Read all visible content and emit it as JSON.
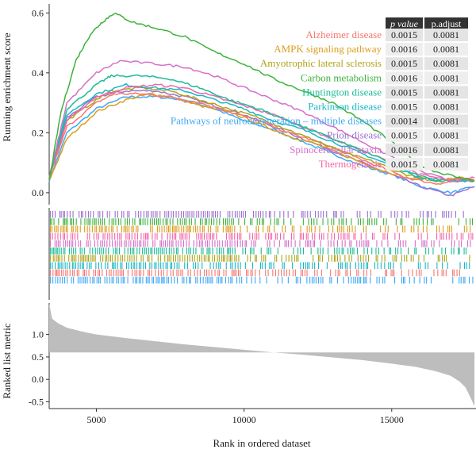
{
  "chart_data": {
    "type": "line",
    "xlabel": "Rank in ordered dataset",
    "x_ticks": [
      5000,
      10000,
      15000
    ],
    "x_range": [
      3400,
      17800
    ],
    "top_panel": {
      "ylabel": "Running enrichment score",
      "y_ticks": [
        0.0,
        0.2,
        0.4,
        0.6
      ],
      "ylim": [
        -0.04,
        0.63
      ],
      "series": [
        {
          "name": "Alzheimer disease",
          "color": "#F8766D",
          "x": [
            3400,
            4000,
            5000,
            5600,
            6500,
            7500,
            8500,
            9500,
            10500,
            11500,
            12500,
            13500,
            14500,
            15500,
            16500,
            17300,
            17800
          ],
          "y": [
            0.05,
            0.22,
            0.3,
            0.33,
            0.33,
            0.32,
            0.3,
            0.27,
            0.24,
            0.2,
            0.17,
            0.13,
            0.09,
            0.05,
            0.03,
            0.04,
            0.04
          ]
        },
        {
          "name": "AMPK signaling pathway",
          "color": "#DB9D1C",
          "x": [
            3400,
            4000,
            5000,
            6000,
            6800,
            7500,
            8500,
            9500,
            10500,
            11500,
            12500,
            13500,
            14500,
            15500,
            16500,
            17300,
            17800
          ],
          "y": [
            0.04,
            0.18,
            0.27,
            0.31,
            0.33,
            0.32,
            0.29,
            0.27,
            0.23,
            0.19,
            0.16,
            0.12,
            0.08,
            0.05,
            0.04,
            0.05,
            0.04
          ]
        },
        {
          "name": "Amyotrophic lateral sclerosis",
          "color": "#AFA31B",
          "x": [
            3400,
            4000,
            5000,
            5500,
            6500,
            7500,
            8500,
            9500,
            10500,
            11500,
            12500,
            13500,
            14500,
            15500,
            16500,
            17300,
            17800
          ],
          "y": [
            0.05,
            0.24,
            0.31,
            0.34,
            0.35,
            0.34,
            0.31,
            0.28,
            0.25,
            0.21,
            0.17,
            0.13,
            0.1,
            0.06,
            0.04,
            0.05,
            0.04
          ]
        },
        {
          "name": "Carbon metabolism",
          "color": "#3DB23D",
          "x": [
            3400,
            3800,
            4300,
            4800,
            5200,
            5600,
            6200,
            7000,
            8000,
            9000,
            10000,
            11000,
            12000,
            13000,
            14000,
            15000,
            15800,
            16500,
            17300,
            17800
          ],
          "y": [
            0.04,
            0.27,
            0.44,
            0.53,
            0.57,
            0.6,
            0.57,
            0.55,
            0.52,
            0.47,
            0.43,
            0.38,
            0.34,
            0.3,
            0.24,
            0.17,
            0.1,
            0.07,
            0.05,
            0.04
          ]
        },
        {
          "name": "Huntington disease",
          "color": "#1ABD96",
          "x": [
            3400,
            4000,
            5000,
            5500,
            6500,
            7500,
            8500,
            9500,
            10500,
            11500,
            12500,
            13500,
            14500,
            15500,
            16500,
            17300,
            17800
          ],
          "y": [
            0.05,
            0.28,
            0.36,
            0.39,
            0.39,
            0.38,
            0.35,
            0.31,
            0.28,
            0.24,
            0.2,
            0.16,
            0.12,
            0.07,
            0.04,
            0.04,
            0.04
          ]
        },
        {
          "name": "Parkinson disease",
          "color": "#19B7C7",
          "x": [
            3400,
            4000,
            5000,
            6000,
            7000,
            8000,
            9000,
            10000,
            11000,
            12000,
            13000,
            14000,
            15000,
            16000,
            17000,
            17800
          ],
          "y": [
            0.05,
            0.26,
            0.33,
            0.36,
            0.35,
            0.34,
            0.31,
            0.28,
            0.24,
            0.21,
            0.17,
            0.13,
            0.09,
            0.05,
            0.04,
            0.04
          ]
        },
        {
          "name": "Pathways of neurodegeneration – multiple diseases",
          "color": "#3FA9F5",
          "x": [
            3400,
            4000,
            5000,
            6000,
            7000,
            8000,
            9000,
            10000,
            11000,
            12000,
            13000,
            14000,
            15000,
            16000,
            17000,
            17800
          ],
          "y": [
            0.04,
            0.2,
            0.28,
            0.32,
            0.32,
            0.31,
            0.28,
            0.24,
            0.21,
            0.17,
            0.13,
            0.09,
            0.06,
            0.02,
            0.0,
            0.02
          ]
        },
        {
          "name": "Prion disease",
          "color": "#9B72CF",
          "x": [
            3400,
            4000,
            5000,
            6000,
            7000,
            8000,
            9000,
            10000,
            11000,
            12000,
            13000,
            14000,
            15000,
            16000,
            17000,
            17800
          ],
          "y": [
            0.05,
            0.25,
            0.32,
            0.34,
            0.34,
            0.32,
            0.29,
            0.26,
            0.22,
            0.18,
            0.14,
            0.1,
            0.06,
            0.02,
            -0.01,
            0.02
          ]
        },
        {
          "name": "Spinocerebellar ataxia",
          "color": "#D56FCB",
          "x": [
            3400,
            4000,
            5000,
            5800,
            7000,
            8000,
            9000,
            10000,
            11000,
            12000,
            13000,
            14000,
            15000,
            16000,
            17000,
            17800
          ],
          "y": [
            0.05,
            0.3,
            0.4,
            0.44,
            0.43,
            0.42,
            0.39,
            0.35,
            0.31,
            0.27,
            0.22,
            0.17,
            0.12,
            0.07,
            0.04,
            0.04
          ]
        },
        {
          "name": "Thermogenesis",
          "color": "#F266A8",
          "x": [
            3400,
            4000,
            5000,
            6000,
            7000,
            8000,
            9000,
            10000,
            11000,
            12000,
            13000,
            14000,
            15000,
            16000,
            17000,
            17800
          ],
          "y": [
            0.05,
            0.24,
            0.32,
            0.35,
            0.36,
            0.35,
            0.32,
            0.29,
            0.26,
            0.22,
            0.18,
            0.14,
            0.1,
            0.06,
            0.04,
            0.05
          ]
        }
      ],
      "table": {
        "headers": [
          "p value",
          "p.adjust"
        ],
        "rows": [
          [
            "0.0015",
            "0.0081"
          ],
          [
            "0.0016",
            "0.0081"
          ],
          [
            "0.0015",
            "0.0081"
          ],
          [
            "0.0016",
            "0.0081"
          ],
          [
            "0.0015",
            "0.0081"
          ],
          [
            "0.0015",
            "0.0081"
          ],
          [
            "0.0014",
            "0.0081"
          ],
          [
            "0.0015",
            "0.0081"
          ],
          [
            "0.0016",
            "0.0081"
          ],
          [
            "0.0015",
            "0.0081"
          ]
        ]
      }
    },
    "rug_panel": {
      "type": "barcode",
      "row_order": [
        "Prion disease",
        "Carbon metabolism",
        "AMPK signaling pathway",
        "Thermogenesis",
        "Spinocerebellar ataxia",
        "Huntington disease",
        "Amyotrophic lateral sclerosis",
        "Parkinson disease",
        "Alzheimer disease",
        "Pathways of neurodegeneration – multiple diseases"
      ]
    },
    "bottom_panel": {
      "type": "area",
      "ylabel": "Ranked list metric",
      "y_ticks": [
        -0.5,
        0.0,
        0.5,
        1.0
      ],
      "ylim": [
        -0.65,
        1.7
      ],
      "fill": "#bdbdbd",
      "x": [
        3400,
        3500,
        3700,
        4000,
        4500,
        5000,
        6000,
        7000,
        8000,
        9000,
        10000,
        11000,
        12000,
        13000,
        14000,
        15000,
        15800,
        16500,
        17000,
        17300,
        17500,
        17700,
        17800
      ],
      "y": [
        1.68,
        1.35,
        1.25,
        1.15,
        1.07,
        1.0,
        0.92,
        0.85,
        0.78,
        0.72,
        0.66,
        0.6,
        0.55,
        0.49,
        0.43,
        0.35,
        0.28,
        0.18,
        0.08,
        -0.05,
        -0.18,
        -0.45,
        -0.6
      ]
    }
  }
}
